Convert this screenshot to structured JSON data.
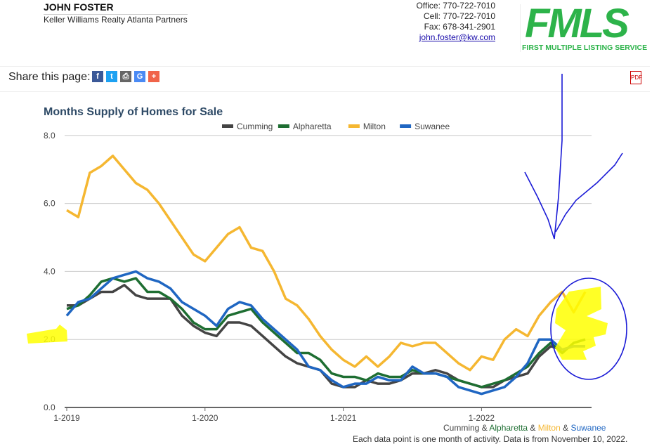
{
  "header": {
    "name": "JOHN FOSTER",
    "company": "Keller Williams Realty Atlanta Partners",
    "office": "Office: 770-722-7010",
    "cell": "Cell: 770-722-7010",
    "fax": "Fax: 678-341-2901",
    "email": "john.foster@kw.com",
    "logo_text": "FMLS",
    "logo_subtitle": "FIRST MULTIPLE LISTING SERVICE"
  },
  "share": {
    "label": "Share this page:",
    "icons": [
      "facebook-icon",
      "twitter-icon",
      "print-icon",
      "google-icon",
      "plus-icon"
    ],
    "pdf_icon": "pdf-icon"
  },
  "colors": {
    "Cumming": "#444444",
    "Alpharetta": "#1e6e32",
    "Milton": "#f5b731",
    "Suwanee": "#1f66c2"
  },
  "footer": {
    "legend": [
      "Cumming",
      " & ",
      "Alpharetta",
      " & ",
      "Milton",
      " & ",
      "Suwanee"
    ],
    "note": "Each data point is one month of activity. Data is from November 10, 2022."
  },
  "chart_data": {
    "type": "line",
    "title": "Months Supply of Homes for Sale",
    "xlabel": "",
    "ylabel": "",
    "ylim": [
      0,
      8
    ],
    "yticks": [
      "0.0",
      "2.0",
      "4.0",
      "6.0",
      "8.0"
    ],
    "xticks": [
      "1-2019",
      "1-2020",
      "1-2021",
      "1-2022"
    ],
    "x_start": "1-2019",
    "x_end": "10-2022",
    "legend_position": "top",
    "series": [
      {
        "name": "Cumming",
        "values": [
          3.0,
          3.0,
          3.2,
          3.4,
          3.4,
          3.6,
          3.3,
          3.2,
          3.2,
          3.2,
          2.7,
          2.4,
          2.2,
          2.1,
          2.5,
          2.5,
          2.4,
          2.1,
          1.8,
          1.5,
          1.3,
          1.2,
          1.1,
          0.7,
          0.6,
          0.6,
          0.8,
          0.7,
          0.7,
          0.8,
          1.0,
          1.0,
          1.1,
          1.0,
          0.8,
          0.7,
          0.6,
          0.6,
          0.8,
          0.9,
          1.0,
          1.5,
          1.8,
          1.7,
          1.8,
          1.8
        ]
      },
      {
        "name": "Alpharetta",
        "values": [
          2.9,
          3.0,
          3.3,
          3.7,
          3.8,
          3.7,
          3.8,
          3.4,
          3.4,
          3.2,
          2.9,
          2.5,
          2.3,
          2.3,
          2.7,
          2.8,
          2.9,
          2.5,
          2.2,
          1.9,
          1.6,
          1.6,
          1.4,
          1.0,
          0.9,
          0.9,
          0.8,
          1.0,
          0.9,
          0.9,
          1.1,
          1.0,
          1.0,
          0.9,
          0.8,
          0.7,
          0.6,
          0.7,
          0.8,
          1.0,
          1.2,
          1.6,
          1.9,
          1.6,
          1.9,
          2.0
        ]
      },
      {
        "name": "Milton",
        "values": [
          5.8,
          5.6,
          6.9,
          7.1,
          7.4,
          7.0,
          6.6,
          6.4,
          6.0,
          5.5,
          5.0,
          4.5,
          4.3,
          4.7,
          5.1,
          5.3,
          4.7,
          4.6,
          4.0,
          3.2,
          3.0,
          2.6,
          2.1,
          1.7,
          1.4,
          1.2,
          1.5,
          1.2,
          1.5,
          1.9,
          1.8,
          1.9,
          1.9,
          1.6,
          1.3,
          1.1,
          1.5,
          1.4,
          2.0,
          2.3,
          2.1,
          2.7,
          3.1,
          3.4,
          2.8,
          3.4
        ]
      },
      {
        "name": "Suwanee",
        "values": [
          2.7,
          3.1,
          3.2,
          3.5,
          3.8,
          3.9,
          4.0,
          3.8,
          3.7,
          3.5,
          3.1,
          2.9,
          2.7,
          2.4,
          2.9,
          3.1,
          3.0,
          2.6,
          2.3,
          2.0,
          1.7,
          1.2,
          1.1,
          0.8,
          0.6,
          0.7,
          0.7,
          0.9,
          0.8,
          0.8,
          1.2,
          1.0,
          1.0,
          0.9,
          0.6,
          0.5,
          0.4,
          0.5,
          0.6,
          0.9,
          1.3,
          2.0,
          2.0,
          1.7,
          1.8,
          1.8
        ]
      }
    ]
  }
}
